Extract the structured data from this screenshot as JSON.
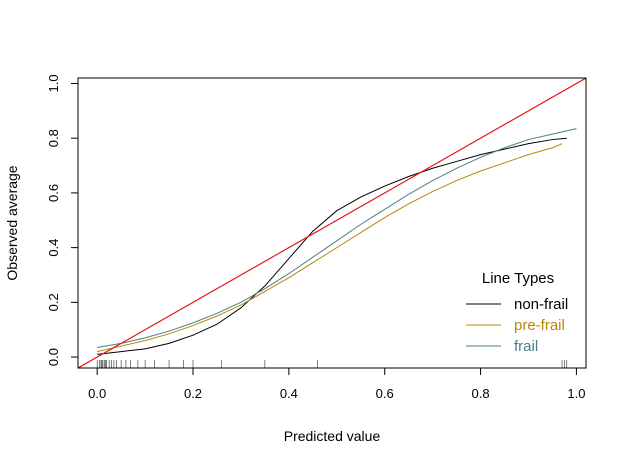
{
  "chart_data": {
    "type": "line",
    "title": "",
    "xlabel": "Predicted value",
    "ylabel": "Observed average",
    "xlim": [
      -0.04,
      1.02
    ],
    "ylim": [
      -0.04,
      1.02
    ],
    "x_ticks": [
      "0.0",
      "0.2",
      "0.4",
      "0.6",
      "0.8",
      "1.0"
    ],
    "y_ticks": [
      "0.0",
      "0.2",
      "0.4",
      "0.6",
      "0.8",
      "1.0"
    ],
    "legend": {
      "title": "Line Types",
      "position": "bottom-right",
      "entries": [
        {
          "label": "non-frail",
          "color": "#000000"
        },
        {
          "label": "pre-frail",
          "color": "#b8860b"
        },
        {
          "label": "frail",
          "color": "#4a7f86"
        }
      ]
    },
    "reference_line": {
      "x": [
        -0.04,
        1.02
      ],
      "y": [
        -0.04,
        1.02
      ],
      "color": "#e31a1c"
    },
    "series": [
      {
        "name": "non-frail",
        "color": "#000000",
        "x": [
          0.0,
          0.05,
          0.1,
          0.15,
          0.2,
          0.25,
          0.3,
          0.35,
          0.4,
          0.45,
          0.5,
          0.55,
          0.6,
          0.65,
          0.7,
          0.75,
          0.8,
          0.85,
          0.9,
          0.95,
          0.98
        ],
        "y": [
          0.01,
          0.02,
          0.03,
          0.05,
          0.08,
          0.12,
          0.18,
          0.26,
          0.36,
          0.46,
          0.535,
          0.585,
          0.625,
          0.66,
          0.69,
          0.715,
          0.74,
          0.76,
          0.78,
          0.795,
          0.8
        ]
      },
      {
        "name": "pre-frail",
        "color": "#b8860b",
        "x": [
          0.0,
          0.05,
          0.1,
          0.15,
          0.2,
          0.25,
          0.3,
          0.35,
          0.4,
          0.45,
          0.5,
          0.55,
          0.6,
          0.65,
          0.7,
          0.75,
          0.8,
          0.85,
          0.9,
          0.95,
          0.97
        ],
        "y": [
          0.02,
          0.04,
          0.06,
          0.085,
          0.115,
          0.15,
          0.19,
          0.24,
          0.29,
          0.345,
          0.4,
          0.455,
          0.51,
          0.56,
          0.605,
          0.645,
          0.68,
          0.71,
          0.74,
          0.765,
          0.78
        ]
      },
      {
        "name": "frail",
        "color": "#4a7f86",
        "x": [
          0.0,
          0.05,
          0.1,
          0.15,
          0.2,
          0.25,
          0.3,
          0.35,
          0.4,
          0.45,
          0.5,
          0.55,
          0.6,
          0.65,
          0.7,
          0.75,
          0.8,
          0.85,
          0.9,
          0.95,
          1.0
        ],
        "y": [
          0.035,
          0.05,
          0.07,
          0.095,
          0.125,
          0.16,
          0.2,
          0.25,
          0.305,
          0.365,
          0.425,
          0.485,
          0.54,
          0.595,
          0.645,
          0.69,
          0.73,
          0.765,
          0.795,
          0.815,
          0.835
        ]
      }
    ],
    "rug": [
      0.0,
      0.005,
      0.008,
      0.01,
      0.012,
      0.015,
      0.018,
      0.02,
      0.025,
      0.03,
      0.035,
      0.04,
      0.05,
      0.06,
      0.07,
      0.085,
      0.1,
      0.12,
      0.15,
      0.18,
      0.2,
      0.26,
      0.35,
      0.46,
      0.97,
      0.975,
      0.98
    ]
  }
}
